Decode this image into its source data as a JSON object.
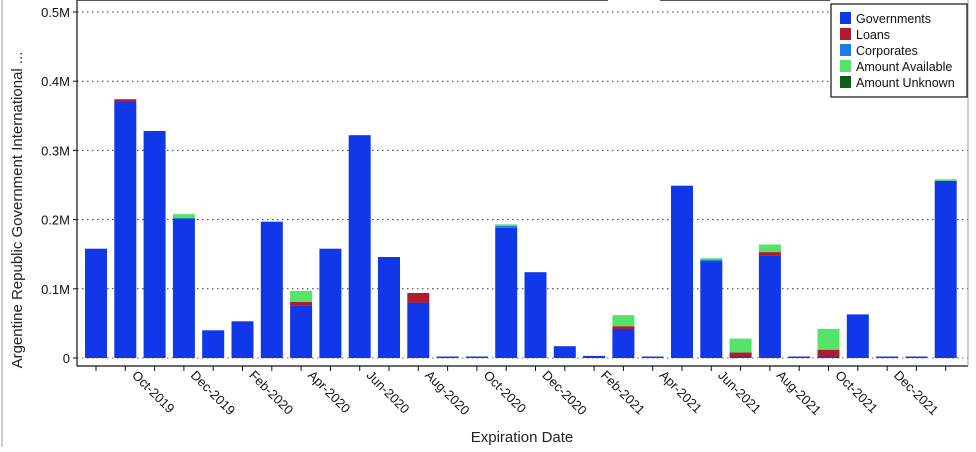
{
  "chart_data": {
    "type": "bar",
    "stacked": true,
    "xlabel": "Expiration Date",
    "ylabel": "Argentine Republic Government International ...",
    "ylim": [
      0,
      0.5
    ],
    "y_unit_suffix": "M",
    "yticks": [
      0,
      0.1,
      0.2,
      0.3,
      0.4,
      0.5
    ],
    "ytick_labels": [
      "0",
      "0.1M",
      "0.2M",
      "0.3M",
      "0.4M",
      "0.5M"
    ],
    "grid": "horizontal dotted",
    "legend_position": "top-right",
    "x_tick_labels": [
      "Oct-2019",
      "Dec-2019",
      "Feb-2020",
      "Apr-2020",
      "Jun-2020",
      "Aug-2020",
      "Oct-2020",
      "Dec-2020",
      "Feb-2021",
      "Apr-2021",
      "Jun-2021",
      "Aug-2021",
      "Oct-2021",
      "Dec-2021"
    ],
    "series": [
      {
        "name": "Governments",
        "color": "#1038e8",
        "values": [
          0.158,
          0.37,
          0.328,
          0.202,
          0.04,
          0.053,
          0.197,
          0.076,
          0.158,
          0.322,
          0.146,
          0.08,
          0.001,
          0.002,
          0.188,
          0.124,
          0.017,
          0.003,
          0.042,
          0.001,
          0.249,
          0.14,
          0.002,
          0.148,
          0.001,
          0.002,
          0.063,
          0.001,
          0.001,
          0.256
        ]
      },
      {
        "name": "Loans",
        "color": "#b01c2e",
        "values": [
          0,
          0.004,
          0,
          0,
          0,
          0,
          0,
          0.005,
          0,
          0,
          0,
          0.014,
          0,
          0,
          0,
          0,
          0,
          0,
          0.004,
          0,
          0,
          0,
          0.006,
          0.005,
          0,
          0.01,
          0,
          0,
          0,
          0
        ]
      },
      {
        "name": "Corporates",
        "color": "#1e7ae6",
        "values": [
          0,
          0,
          0,
          0,
          0,
          0,
          0,
          0,
          0,
          0,
          0,
          0,
          0,
          0,
          0.003,
          0,
          0,
          0,
          0,
          0,
          0,
          0.002,
          0,
          0,
          0,
          0,
          0,
          0,
          0,
          0
        ]
      },
      {
        "name": "Amount Available",
        "color": "#55e36a",
        "values": [
          0,
          0,
          0,
          0.006,
          0,
          0,
          0,
          0.016,
          0,
          0,
          0,
          0,
          0,
          0,
          0.002,
          0,
          0,
          0,
          0.016,
          0,
          0,
          0.002,
          0.02,
          0.011,
          0,
          0.03,
          0,
          0,
          0,
          0.002
        ]
      },
      {
        "name": "Amount Unknown",
        "color": "#125c1a",
        "values": [
          0,
          0,
          0,
          0,
          0,
          0,
          0,
          0,
          0,
          0,
          0,
          0,
          0,
          0,
          0,
          0,
          0,
          0,
          0,
          0,
          0,
          0,
          0,
          0,
          0,
          0,
          0,
          0,
          0,
          0
        ]
      }
    ]
  }
}
